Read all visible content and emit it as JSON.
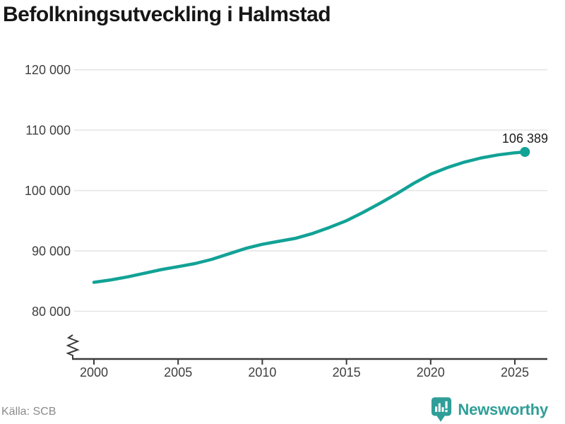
{
  "title": "Befolkningsutveckling i Halmstad",
  "footer": {
    "source": "Källa: SCB",
    "brand": "Newsworthy"
  },
  "colors": {
    "line": "#12a296",
    "grid": "#e4e4e4",
    "axis": "#3b3b3b",
    "tick_label": "#3f3f3f",
    "title": "#161616",
    "source_text": "#8b8b8b",
    "brand_teal": "#2f9e98",
    "annotation": "#1c1c1c"
  },
  "chart_data": {
    "type": "line",
    "title": "Befolkningsutveckling i Halmstad",
    "xlabel": "",
    "ylabel": "",
    "legend": "none",
    "grid": "horizontal",
    "axis_break_bottom_left": true,
    "xlim": [
      1998.8,
      2027
    ],
    "ylim": [
      80000,
      120000
    ],
    "x": [
      2000,
      2001,
      2002,
      2003,
      2004,
      2005,
      2006,
      2007,
      2008,
      2009,
      2010,
      2011,
      2012,
      2013,
      2014,
      2015,
      2016,
      2017,
      2018,
      2019,
      2020,
      2021,
      2022,
      2023,
      2024,
      2025,
      2025.6
    ],
    "values": [
      84800,
      85200,
      85700,
      86300,
      86900,
      87400,
      87900,
      88600,
      89500,
      90400,
      91100,
      91600,
      92100,
      92900,
      93900,
      95000,
      96400,
      97900,
      99500,
      101200,
      102700,
      103800,
      104700,
      105400,
      105900,
      106250,
      106389
    ],
    "last_point": {
      "x": 2025.6,
      "y": 106389
    },
    "last_value_label": "106 389",
    "yticks": [
      {
        "label": "120 000",
        "value": 120000
      },
      {
        "label": "110 000",
        "value": 110000
      },
      {
        "label": "100 000",
        "value": 100000
      },
      {
        "label": "90 000",
        "value": 90000
      },
      {
        "label": "80 000",
        "value": 80000
      }
    ],
    "xticks": [
      {
        "label": "2000",
        "value": 2000
      },
      {
        "label": "2005",
        "value": 2005
      },
      {
        "label": "2010",
        "value": 2010
      },
      {
        "label": "2015",
        "value": 2015
      },
      {
        "label": "2020",
        "value": 2020
      },
      {
        "label": "2025",
        "value": 2025
      }
    ]
  }
}
